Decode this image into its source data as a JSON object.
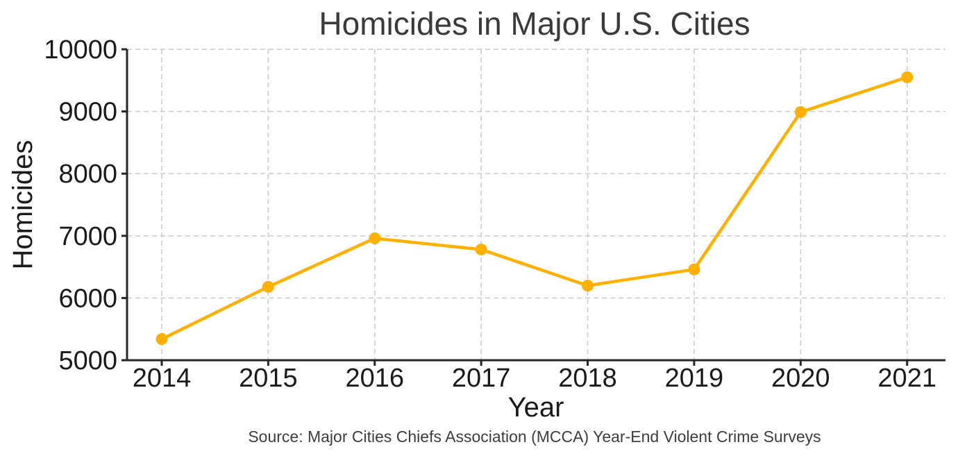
{
  "chart_data": {
    "type": "line",
    "title": "Homicides in Major U.S. Cities",
    "xlabel": "Year",
    "ylabel": "Homicides",
    "source_note": "Source: Major Cities Chiefs Association (MCCA) Year-End Violent Crime Surveys",
    "categories": [
      "2014",
      "2015",
      "2016",
      "2017",
      "2018",
      "2019",
      "2020",
      "2021"
    ],
    "series": [
      {
        "name": "Homicides",
        "values": [
          5340,
          6180,
          6960,
          6780,
          6200,
          6460,
          8990,
          9550
        ]
      }
    ],
    "ylim": [
      5000,
      10000
    ],
    "yticks": [
      5000,
      6000,
      7000,
      8000,
      9000,
      10000
    ],
    "grid": "dashed, both axes",
    "legend": "none",
    "colors": {
      "line": "#FFB000",
      "marker": "#FFB000",
      "grid": "#cfcfcf",
      "spine": "#262626",
      "tick_label": "#1a1a1a",
      "title_text": "#3a3a3a",
      "source_text": "#3d3d3d",
      "background": "#ffffff"
    }
  }
}
